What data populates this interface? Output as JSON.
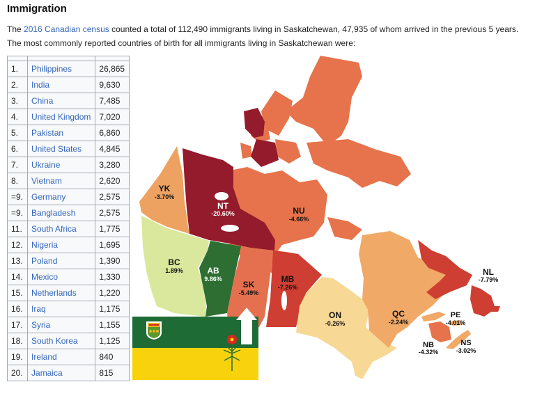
{
  "section": {
    "title": "Immigration",
    "intro": {
      "before_link": "The ",
      "link_text": "2016 Canadian census",
      "after_link": " counted a total of 112,490 immigrants living in Saskatchewan, 47,935 of whom arrived in the previous 5 years.",
      "line2": "The most commonly reported countries of birth for all immigrants living in Saskatchewan were:"
    }
  },
  "table": {
    "rows": [
      {
        "rank": "1.",
        "country": "Philippines",
        "count": "26,865"
      },
      {
        "rank": "2.",
        "country": "India",
        "count": "9,630"
      },
      {
        "rank": "3.",
        "country": "China",
        "count": "7,485"
      },
      {
        "rank": "4.",
        "country": "United Kingdom",
        "count": "7,020"
      },
      {
        "rank": "5.",
        "country": "Pakistan",
        "count": "6,860"
      },
      {
        "rank": "6.",
        "country": "United States",
        "count": "4,845"
      },
      {
        "rank": "7.",
        "country": "Ukraine",
        "count": "3,280"
      },
      {
        "rank": "8.",
        "country": "Vietnam",
        "count": "2,620"
      },
      {
        "rank": "=9.",
        "country": "Germany",
        "count": "2,575"
      },
      {
        "rank": "=9.",
        "country": "Bangladesh",
        "count": "2,575"
      },
      {
        "rank": "11.",
        "country": "South Africa",
        "count": "1,775"
      },
      {
        "rank": "12.",
        "country": "Nigeria",
        "count": "1,695"
      },
      {
        "rank": "13.",
        "country": "Poland",
        "count": "1,390"
      },
      {
        "rank": "14.",
        "country": "Mexico",
        "count": "1,330"
      },
      {
        "rank": "15.",
        "country": "Netherlands",
        "count": "1,220"
      },
      {
        "rank": "16.",
        "country": "Iraq",
        "count": "1,175"
      },
      {
        "rank": "17.",
        "country": "Syria",
        "count": "1,155"
      },
      {
        "rank": "18.",
        "country": "South Korea",
        "count": "1,125"
      },
      {
        "rank": "19.",
        "country": "Ireland",
        "count": "840"
      },
      {
        "rank": "20.",
        "country": "Jamaica",
        "count": "815"
      }
    ]
  },
  "map": {
    "provinces": {
      "YK": {
        "code": "YK",
        "value": "-3.70%",
        "color": "#eda261"
      },
      "NT": {
        "code": "NT",
        "value": "-20.60%",
        "color": "#931b2c"
      },
      "NU": {
        "code": "NU",
        "value": "-4.66%",
        "color": "#e6734b"
      },
      "BC": {
        "code": "BC",
        "value": "1.89%",
        "color": "#d9e89c"
      },
      "AB": {
        "code": "AB",
        "value": "9.86%",
        "color": "#2e6e32"
      },
      "SK": {
        "code": "SK",
        "value": "-5.49%",
        "color": "#e4704f"
      },
      "MB": {
        "code": "MB",
        "value": "-7.26%",
        "color": "#cf3e32"
      },
      "ON": {
        "code": "ON",
        "value": "-0.26%",
        "color": "#f7d895"
      },
      "QC": {
        "code": "QC",
        "value": "-2.24%",
        "color": "#f0a966"
      },
      "NL": {
        "code": "NL",
        "value": "-7.79%",
        "color": "#cf3e32"
      },
      "PE": {
        "code": "PE",
        "value": "-4.01%",
        "color": "#f0a966"
      },
      "NB": {
        "code": "NB",
        "value": "-4.32%",
        "color": "#e6734b"
      },
      "NS": {
        "code": "NS",
        "value": "-3.02%",
        "color": "#f0a966"
      }
    },
    "flag": {
      "top_color": "#1f6b36",
      "bottom_color": "#f8d30d",
      "lily_color": "#d7261e"
    }
  }
}
